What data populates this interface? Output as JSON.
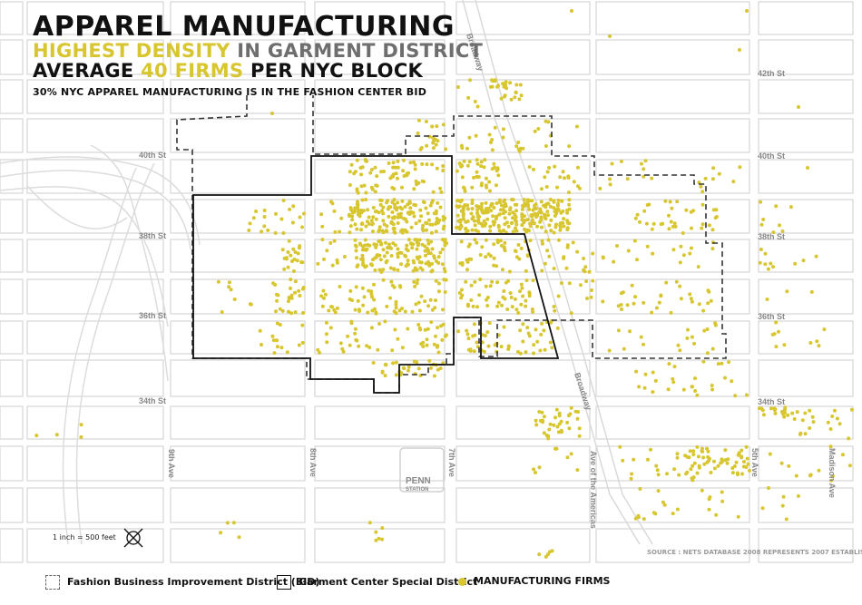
{
  "title": {
    "line1": "APPAREL MANUFACTURING",
    "line2_highlight": "HIGHEST DENSITY",
    "line2_rest": " IN GARMENT DISTRICT",
    "line3_pre": "AVERAGE ",
    "line3_highlight": "40 FIRMS",
    "line3_post": " PER NYC BLOCK",
    "line4": "30% NYC APPAREL MANUFACTURING IS IN THE FASHION CENTER BID"
  },
  "streets": {
    "42nd": "42th St",
    "40th_left": "40th St",
    "40th_right": "40th St",
    "38th_left": "38th St",
    "38th_right": "38th St",
    "36th_left": "36th St",
    "36th_right": "36th St",
    "34th_left": "34th St",
    "34th_right": "34th St"
  },
  "avenues": {
    "broadway_top": "Broadway",
    "broadway_mid": "Broadway",
    "ninth": "9th Ave",
    "eighth": "8th Ave",
    "seventh": "7th Ave",
    "sixth": "Ave of the Americas",
    "fifth": "5th Ave",
    "madison": "Madison Ave"
  },
  "landmarks": {
    "penn_line1": "PENN",
    "penn_line2": "STATION"
  },
  "scale_text": "1 inch = 500 feet",
  "source_text": "SOURCE : NETS DATABASE 2008 REPRESENTS 2007 ESTABLISHMENTS",
  "legend": {
    "bid": "Fashion Business Improvement District (BID)",
    "garment": "Garment Center Special District",
    "firms": "MANUFACTURING FIRMS"
  },
  "colors": {
    "firm_dot": "#d8c631",
    "street_line": "#d9d9d9",
    "bid_boundary": "#333333",
    "garment_boundary": "#111111"
  }
}
